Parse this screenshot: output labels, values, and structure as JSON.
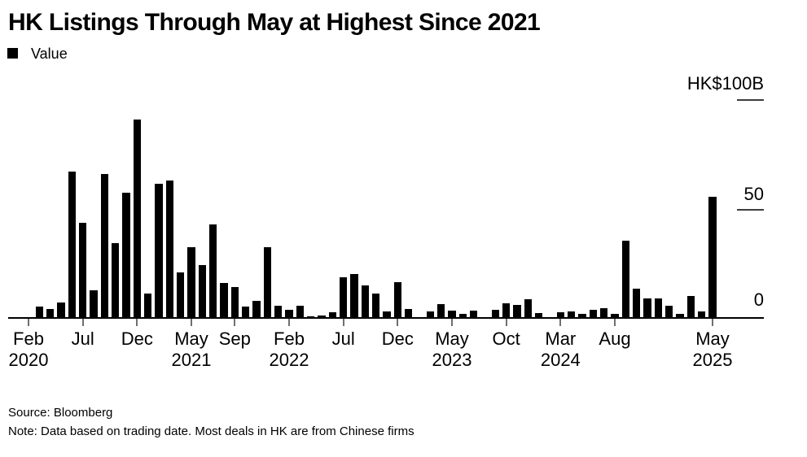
{
  "chart_data": {
    "type": "bar",
    "title": "HK Listings Through May at Highest Since 2021",
    "legend_label": "Value",
    "ylim": [
      0,
      100
    ],
    "grid": false,
    "legend_position": "top-left",
    "y_axis": {
      "unit": "HK$100B",
      "ticks": [
        {
          "value": 100,
          "label": "HK$100B",
          "line": true
        },
        {
          "value": 50,
          "label": "50",
          "line": true
        },
        {
          "value": 0,
          "label": "0",
          "line": false
        }
      ]
    },
    "x_axis": {
      "ticks": [
        {
          "index": 0,
          "line1": "Feb",
          "line2": "2020"
        },
        {
          "index": 5,
          "line1": "Jul",
          "line2": ""
        },
        {
          "index": 10,
          "line1": "Dec",
          "line2": ""
        },
        {
          "index": 15,
          "line1": "May",
          "line2": "2021"
        },
        {
          "index": 19,
          "line1": "Sep",
          "line2": ""
        },
        {
          "index": 24,
          "line1": "Feb",
          "line2": "2022"
        },
        {
          "index": 29,
          "line1": "Jul",
          "line2": ""
        },
        {
          "index": 34,
          "line1": "Dec",
          "line2": ""
        },
        {
          "index": 39,
          "line1": "May",
          "line2": "2023"
        },
        {
          "index": 44,
          "line1": "Oct",
          "line2": ""
        },
        {
          "index": 49,
          "line1": "Mar",
          "line2": "2024"
        },
        {
          "index": 54,
          "line1": "Aug",
          "line2": ""
        },
        {
          "index": 63,
          "line1": "May",
          "line2": "2025"
        }
      ]
    },
    "series": [
      {
        "name": "Value",
        "color": "#000000",
        "months": [
          "Feb 2020",
          "Mar 2020",
          "Apr 2020",
          "May 2020",
          "Jun 2020",
          "Jul 2020",
          "Aug 2020",
          "Sep 2020",
          "Oct 2020",
          "Nov 2020",
          "Dec 2020",
          "Jan 2021",
          "Feb 2021",
          "Mar 2021",
          "Apr 2021",
          "May 2021",
          "Jun 2021",
          "Jul 2021",
          "Aug 2021",
          "Sep 2021",
          "Oct 2021",
          "Nov 2021",
          "Dec 2021",
          "Jan 2022",
          "Feb 2022",
          "Mar 2022",
          "Apr 2022",
          "May 2022",
          "Jun 2022",
          "Jul 2022",
          "Aug 2022",
          "Sep 2022",
          "Oct 2022",
          "Nov 2022",
          "Dec 2022",
          "Jan 2023",
          "Feb 2023",
          "Mar 2023",
          "Apr 2023",
          "May 2023",
          "Jun 2023",
          "Jul 2023",
          "Aug 2023",
          "Sep 2023",
          "Oct 2023",
          "Nov 2023",
          "Dec 2023",
          "Jan 2024",
          "Feb 2024",
          "Mar 2024",
          "Apr 2024",
          "May 2024",
          "Jun 2024",
          "Jul 2024",
          "Aug 2024",
          "Sep 2024",
          "Oct 2024",
          "Nov 2024",
          "Dec 2024",
          "Jan 2025",
          "Feb 2025",
          "Mar 2025",
          "Apr 2025",
          "May 2025"
        ],
        "values": [
          0,
          5.3,
          4.1,
          7.3,
          67,
          43.5,
          13,
          66,
          34.5,
          57.5,
          91,
          11.3,
          61.5,
          63,
          21,
          32.5,
          24.3,
          43,
          16.2,
          14.4,
          5.3,
          7.9,
          32.7,
          5.9,
          3.8,
          5.9,
          1.0,
          1.4,
          2.9,
          18.6,
          20.4,
          15.2,
          11.5,
          3.0,
          16.7,
          4.2,
          0,
          3.2,
          6.4,
          3.5,
          2.2,
          3.5,
          0,
          3.8,
          7.0,
          6.1,
          8.8,
          2.3,
          0,
          2.9,
          3.2,
          2.0,
          3.8,
          4.7,
          2.2,
          35.4,
          13.5,
          9.0,
          9.0,
          5.7,
          2.2,
          10.4,
          3.0,
          55.5
        ]
      }
    ],
    "footer": {
      "source": "Source: Bloomberg",
      "note": "Note: Data based on trading date. Most deals in HK are from Chinese firms"
    }
  }
}
